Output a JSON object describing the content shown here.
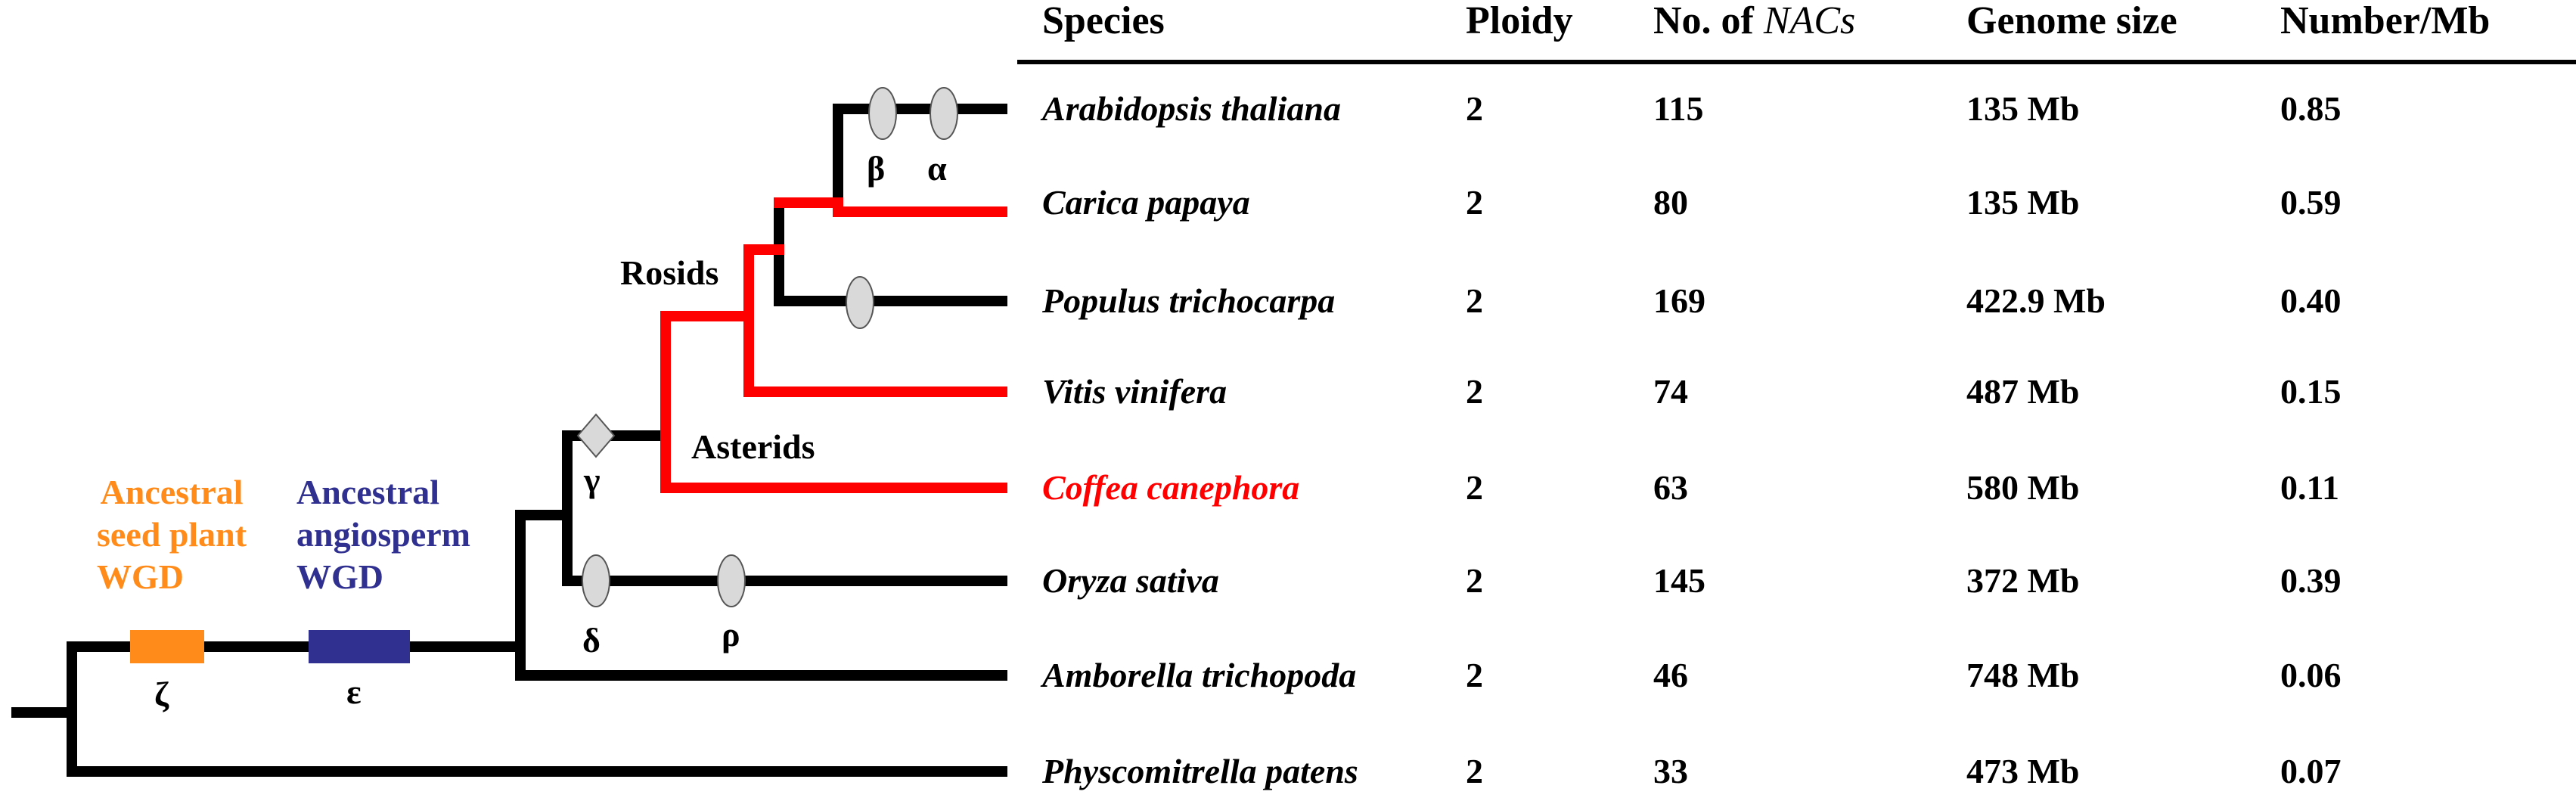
{
  "colors": {
    "highlight": "#ff0000",
    "seed_plant_wgd": "#ff8c1a",
    "angiosperm_wgd": "#303090",
    "duplication_marker": "#d9d9d9",
    "branch": "#000000"
  },
  "tree": {
    "clade_labels": {
      "rosids": "Rosids",
      "asterids": "Asterids"
    },
    "wgd_events": {
      "seed_plant": {
        "line1": "Ancestral",
        "line2": "seed plant",
        "line3": "WGD",
        "symbol": "ζ"
      },
      "angiosperm": {
        "line1": "Ancestral",
        "line2": "angiosperm",
        "line3": "WGD",
        "symbol": "ε"
      }
    },
    "duplication_symbols": {
      "beta": "β",
      "alpha": "α",
      "gamma": "γ",
      "delta": "δ",
      "rho": "ρ"
    },
    "marker_icons": [
      "oval-duplication-icon",
      "diamond-triplication-icon"
    ]
  },
  "table": {
    "headers": {
      "species": "Species",
      "ploidy": "Ploidy",
      "nacs_prefix": "No. of ",
      "nacs_italic": "NACs",
      "genome": "Genome size",
      "density": "Number/Mb"
    },
    "rows": [
      {
        "species": "Arabidopsis thaliana",
        "ploidy": "2",
        "nacs": "115",
        "genome": "135 Mb",
        "density": "0.85",
        "highlight": false
      },
      {
        "species": "Carica papaya",
        "ploidy": "2",
        "nacs": "80",
        "genome": "135 Mb",
        "density": "0.59",
        "highlight": false
      },
      {
        "species": "Populus trichocarpa",
        "ploidy": "2",
        "nacs": "169",
        "genome": "422.9 Mb",
        "density": "0.40",
        "highlight": false
      },
      {
        "species": "Vitis vinifera",
        "ploidy": "2",
        "nacs": "74",
        "genome": "487 Mb",
        "density": "0.15",
        "highlight": false
      },
      {
        "species": "Coffea canephora",
        "ploidy": "2",
        "nacs": "63",
        "genome": "580 Mb",
        "density": "0.11",
        "highlight": true
      },
      {
        "species": "Oryza sativa",
        "ploidy": "2",
        "nacs": "145",
        "genome": "372 Mb",
        "density": "0.39",
        "highlight": false
      },
      {
        "species": "Amborella trichopoda",
        "ploidy": "2",
        "nacs": "46",
        "genome": "748 Mb",
        "density": "0.06",
        "highlight": false
      },
      {
        "species": "Physcomitrella patens",
        "ploidy": "2",
        "nacs": "33",
        "genome": "473 Mb",
        "density": "0.07",
        "highlight": false
      }
    ]
  }
}
